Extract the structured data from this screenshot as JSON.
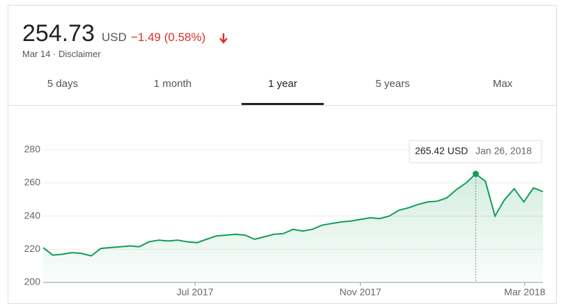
{
  "header": {
    "price": "254.73",
    "currency": "USD",
    "change": "−1.49 (0.58%)",
    "note": "Mar 14 · Disclaimer"
  },
  "tabs": [
    "5 days",
    "1 month",
    "1 year",
    "5 years",
    "Max"
  ],
  "active_tab": 2,
  "chart_data": {
    "type": "line",
    "color": "#0f9d58",
    "values": [
      221,
      216.5,
      217,
      218,
      217.5,
      216,
      220.5,
      221,
      221.5,
      222,
      221.5,
      224.5,
      225.5,
      225,
      225.5,
      224.5,
      224,
      226,
      228,
      228.5,
      229,
      228.5,
      226,
      227.5,
      229,
      229.5,
      232,
      231,
      232,
      234.5,
      235.5,
      236.5,
      237,
      238,
      239,
      238.5,
      240,
      243.5,
      245,
      247,
      248.5,
      249,
      251,
      256,
      260,
      265.42,
      261,
      240,
      250,
      256.5,
      248.5,
      257,
      254.73
    ],
    "ylim": [
      200,
      291
    ],
    "yticks": [
      200,
      220,
      240,
      260,
      280
    ],
    "xlim": [
      0,
      52
    ],
    "xticks": [
      {
        "value": 15.8,
        "label": "Jul 2017"
      },
      {
        "value": 33,
        "label": "Nov 2017"
      },
      {
        "value": 50.1,
        "label": "Mar 2018"
      }
    ],
    "grid": true,
    "tooltip": {
      "value": 265.42,
      "label": "265.42 USD",
      "date": "Jan 26, 2018"
    }
  }
}
